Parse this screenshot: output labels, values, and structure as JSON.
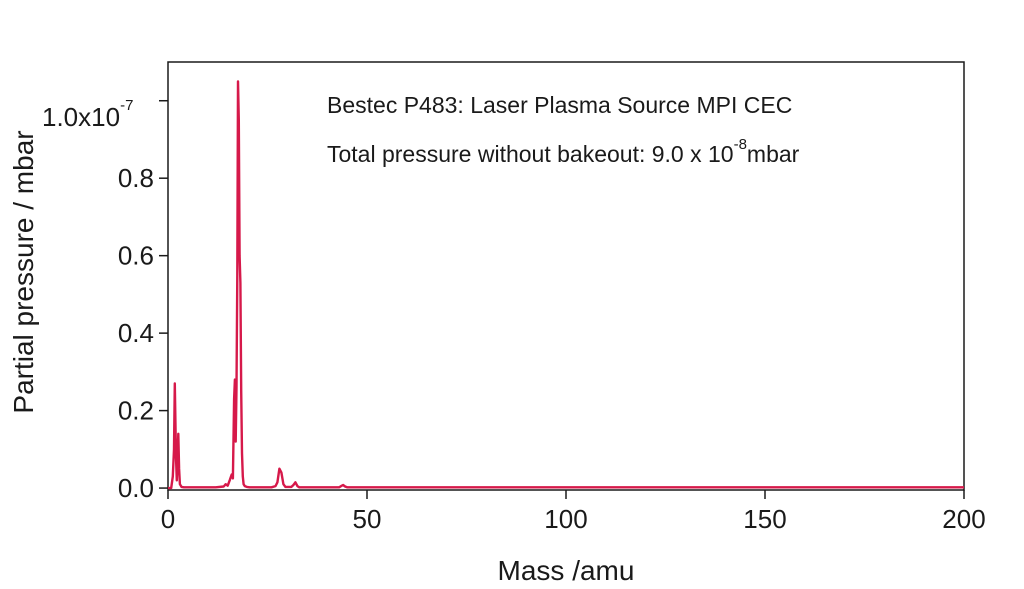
{
  "chart_data": {
    "type": "line",
    "xlabel": "Mass /amu",
    "ylabel": "Partial pressure / mbar",
    "xlim": [
      0,
      200
    ],
    "ylim": [
      -0.005,
      1.1
    ],
    "y_multiplier_label": "1.0x10",
    "y_multiplier_exponent": "-7",
    "x_ticks": [
      {
        "value": 0,
        "label": "0"
      },
      {
        "value": 50,
        "label": "50"
      },
      {
        "value": 100,
        "label": "100"
      },
      {
        "value": 150,
        "label": "150"
      },
      {
        "value": 200,
        "label": "200"
      }
    ],
    "y_ticks": [
      {
        "value": 0.0,
        "label": "0.0"
      },
      {
        "value": 0.2,
        "label": "0.2"
      },
      {
        "value": 0.4,
        "label": "0.4"
      },
      {
        "value": 0.6,
        "label": "0.6"
      },
      {
        "value": 0.8,
        "label": "0.8"
      }
    ],
    "annotations": {
      "line1": "Bestec P483: Laser Plasma Source MPI CEC",
      "line2_prefix": "Total pressure without bakeout: 9.0 x 10",
      "line2_exponent": "-8",
      "line2_suffix": "mbar"
    },
    "series": [
      {
        "color": "#d6194a",
        "x": [
          0.0,
          0.8,
          1.2,
          1.5,
          1.7,
          2.0,
          2.2,
          2.4,
          2.6,
          2.8,
          3.0,
          3.4,
          4.0,
          12.0,
          14.0,
          14.5,
          15.0,
          15.5,
          16.0,
          16.3,
          16.6,
          16.8,
          17.0,
          17.2,
          17.4,
          17.6,
          17.8,
          18.0,
          18.2,
          18.4,
          18.6,
          18.8,
          19.0,
          19.3,
          19.8,
          20.5,
          26.0,
          27.0,
          27.5,
          28.0,
          28.5,
          29.0,
          29.5,
          31.0,
          31.5,
          32.0,
          32.5,
          33.0,
          43.0,
          43.5,
          44.0,
          44.5,
          45.0,
          200.0
        ],
        "y": [
          0.0,
          0.0,
          0.03,
          0.1,
          0.27,
          0.08,
          0.02,
          0.08,
          0.14,
          0.05,
          0.01,
          0.003,
          0.002,
          0.002,
          0.004,
          0.01,
          0.006,
          0.02,
          0.035,
          0.025,
          0.23,
          0.28,
          0.12,
          0.26,
          0.55,
          1.05,
          0.95,
          0.6,
          0.53,
          0.25,
          0.09,
          0.03,
          0.01,
          0.005,
          0.003,
          0.002,
          0.002,
          0.005,
          0.015,
          0.05,
          0.04,
          0.01,
          0.003,
          0.003,
          0.008,
          0.015,
          0.005,
          0.002,
          0.002,
          0.005,
          0.008,
          0.004,
          0.002,
          0.002
        ]
      }
    ]
  }
}
